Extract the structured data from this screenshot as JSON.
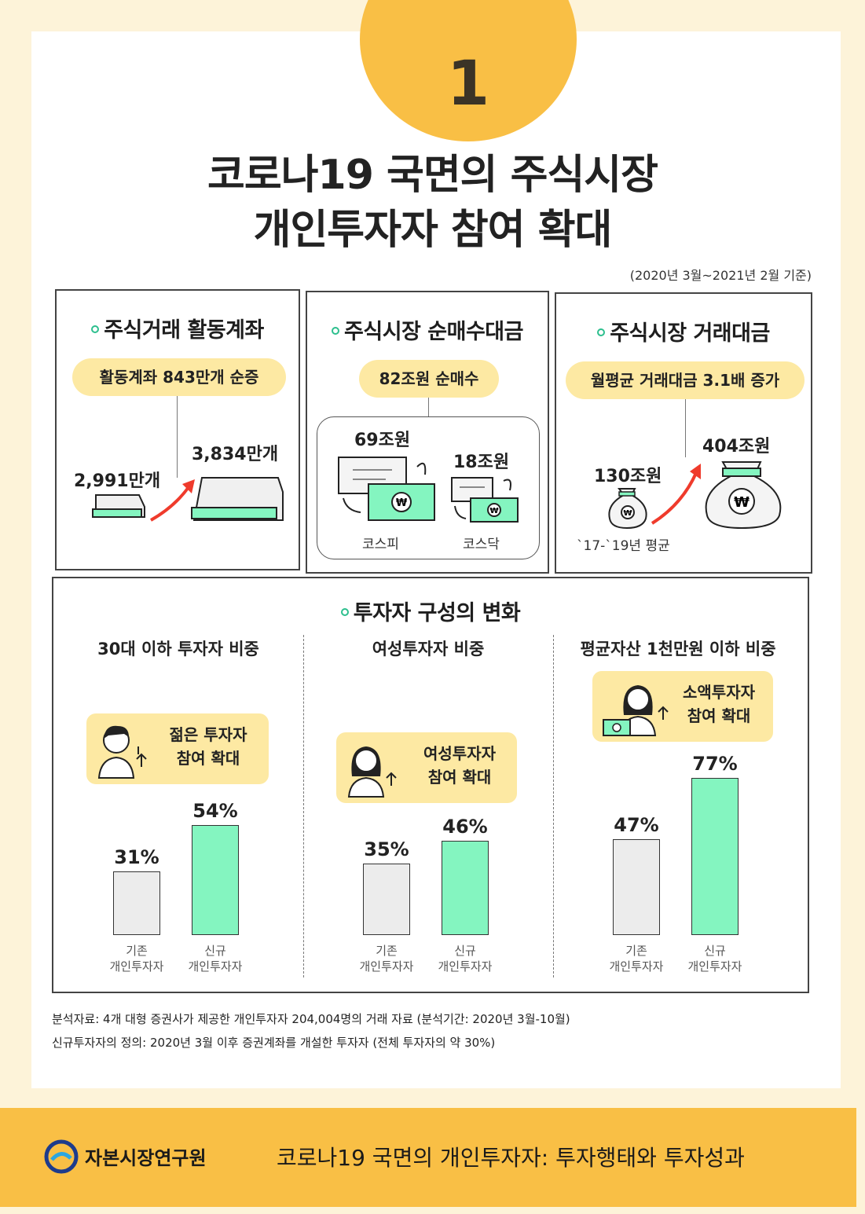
{
  "header": {
    "number": "1",
    "title_line1": "코로나19 국면의 주식시장",
    "title_line2": "개인투자자 참여 확대",
    "basis": "(2020년 3월~2021년 2월 기준)"
  },
  "panels": {
    "accounts": {
      "title": "주식거래 활동계좌",
      "pill": "활동계좌 843만개 순증",
      "before": "2,991만개",
      "after": "3,834만개"
    },
    "net_buy": {
      "title": "주식시장 순매수대금",
      "pill": "82조원 순매수",
      "kospi_value": "69조원",
      "kosdaq_value": "18조원",
      "kospi_label": "코스피",
      "kosdaq_label": "코스닥"
    },
    "trading_value": {
      "title": "주식시장 거래대금",
      "pill": "월평균 거래대금 3.1배 증가",
      "before": "130조원",
      "after": "404조원",
      "before_label": "`17-`19년 평균"
    }
  },
  "composition": {
    "title": "투자자 구성의 변화",
    "bubbles": {
      "young": [
        "젊은 투자자",
        "참여 확대"
      ],
      "female": [
        "여성투자자",
        "참여 확대"
      ],
      "small": [
        "소액투자자",
        "참여 확대"
      ]
    }
  },
  "chart_data": [
    {
      "type": "bar",
      "title": "30대 이하 투자자 비중",
      "categories": [
        "기존 개인투자자",
        "신규 개인투자자"
      ],
      "category_lines": [
        [
          "기존",
          "개인투자자"
        ],
        [
          "신규",
          "개인투자자"
        ]
      ],
      "values": [
        31,
        54
      ],
      "value_labels": [
        "31%",
        "54%"
      ],
      "unit": "%",
      "colors": [
        "#ececec",
        "#84f5c0"
      ]
    },
    {
      "type": "bar",
      "title": "여성투자자 비중",
      "categories": [
        "기존 개인투자자",
        "신규 개인투자자"
      ],
      "category_lines": [
        [
          "기존",
          "개인투자자"
        ],
        [
          "신규",
          "개인투자자"
        ]
      ],
      "values": [
        35,
        46
      ],
      "value_labels": [
        "35%",
        "46%"
      ],
      "unit": "%",
      "colors": [
        "#ececec",
        "#84f5c0"
      ]
    },
    {
      "type": "bar",
      "title": "평균자산 1천만원 이하 비중",
      "categories": [
        "기존 개인투자자",
        "신규 개인투자자"
      ],
      "category_lines": [
        [
          "기존",
          "개인투자자"
        ],
        [
          "신규",
          "개인투자자"
        ]
      ],
      "values": [
        47,
        77
      ],
      "value_labels": [
        "47%",
        "77%"
      ],
      "unit": "%",
      "colors": [
        "#ececec",
        "#84f5c0"
      ]
    }
  ],
  "footnotes": {
    "source": "분석자료: 4개 대형 증권사가 제공한 개인투자자 204,004명의 거래 자료 (분석기간: 2020년 3월-10월)",
    "definition": "신규투자자의 정의: 2020년 3월 이후 증권계좌를 개설한 투자자 (전체 투자자의 약 30%)"
  },
  "footer": {
    "org": "자본시장연구원",
    "report_title": "코로나19 국면의 개인투자자: 투자행태와 투자성과"
  },
  "colors": {
    "accent_yellow": "#f9bf45",
    "pill_yellow": "#fde9a3",
    "mint": "#84f5c0",
    "gray_bar": "#ececec",
    "arrow_red": "#ef3b2c"
  }
}
